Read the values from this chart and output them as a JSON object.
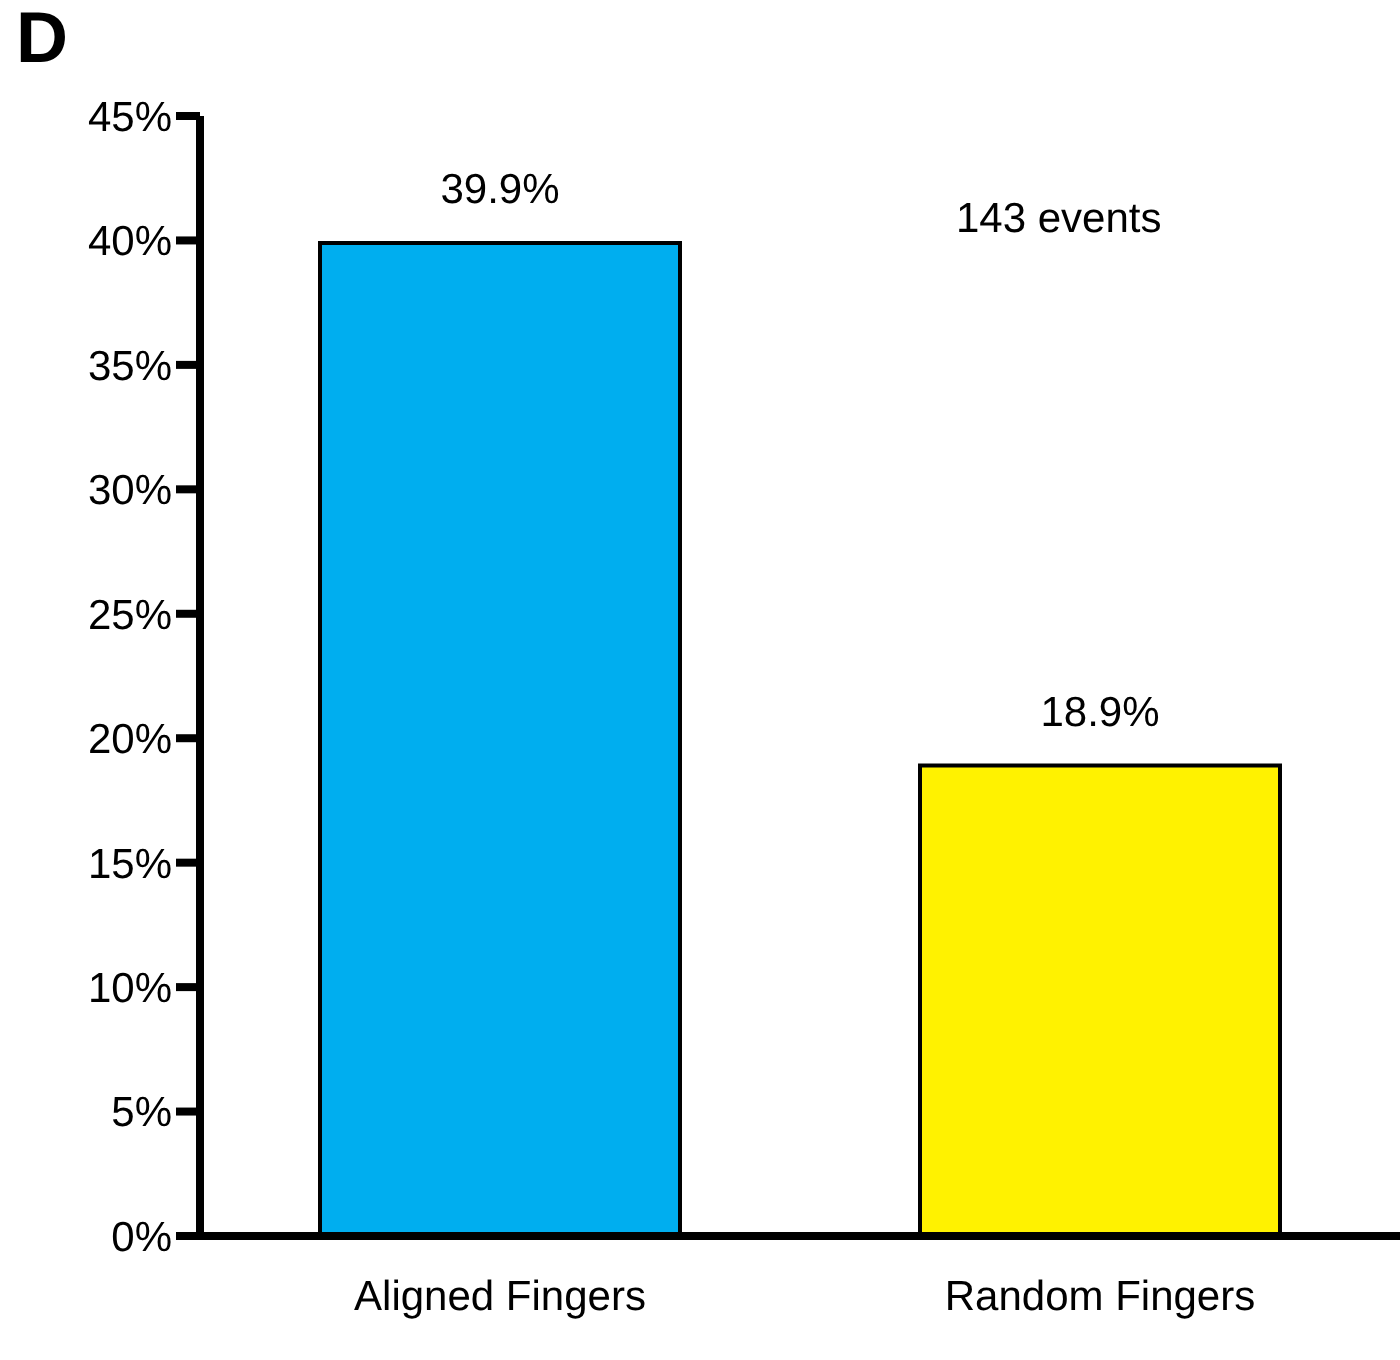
{
  "chart_data": {
    "type": "bar",
    "title": "D",
    "categories": [
      "Aligned Fingers",
      "Random Fingers"
    ],
    "values": [
      39.9,
      18.9
    ],
    "colors": [
      "#00aeef",
      "#fff200"
    ],
    "value_labels": [
      "39.9%",
      "18.9%"
    ],
    "ylim": [
      0,
      45
    ],
    "yticks": [
      {
        "value": 0,
        "label": "0%"
      },
      {
        "value": 5,
        "label": "5%"
      },
      {
        "value": 10,
        "label": "10%"
      },
      {
        "value": 15,
        "label": "15%"
      },
      {
        "value": 20,
        "label": "20%"
      },
      {
        "value": 25,
        "label": "25%"
      },
      {
        "value": 30,
        "label": "30%"
      },
      {
        "value": 35,
        "label": "35%"
      },
      {
        "value": 40,
        "label": "40%"
      },
      {
        "value": 45,
        "label": "45%"
      }
    ],
    "annotations": [
      "143 events"
    ]
  }
}
